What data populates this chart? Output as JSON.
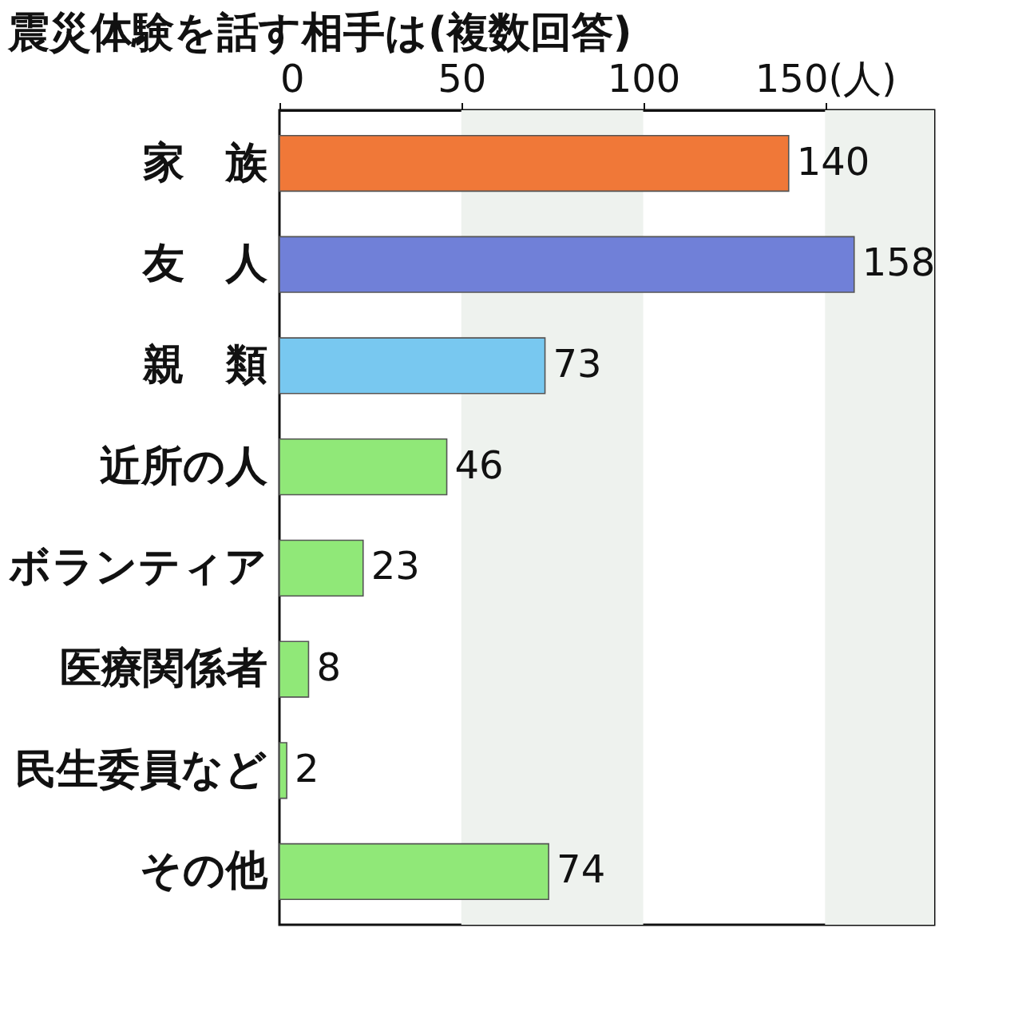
{
  "chart_data": {
    "type": "bar",
    "orientation": "horizontal",
    "title": "震災体験を話す相手は(複数回答)",
    "categories": [
      "家　族",
      "友　人",
      "親　類",
      "近所の人",
      "ボランティア",
      "医療関係者",
      "民生委員など",
      "その他"
    ],
    "values": [
      140,
      158,
      73,
      46,
      23,
      8,
      2,
      74
    ],
    "colors": [
      "#f07838",
      "#7080d8",
      "#78c8f0",
      "#90e878",
      "#90e878",
      "#90e878",
      "#90e878",
      "#90e878"
    ],
    "xlim": [
      0,
      180
    ],
    "xticks": [
      0,
      50,
      100,
      {
        "value": 150,
        "label": "150(人)"
      }
    ],
    "bands": [
      {
        "axis": "x",
        "from": 50,
        "to": 100,
        "color": "#eef2ee"
      },
      {
        "axis": "x",
        "from": 150,
        "to": 180,
        "color": "#eef2ee"
      }
    ],
    "data_labels": true
  }
}
